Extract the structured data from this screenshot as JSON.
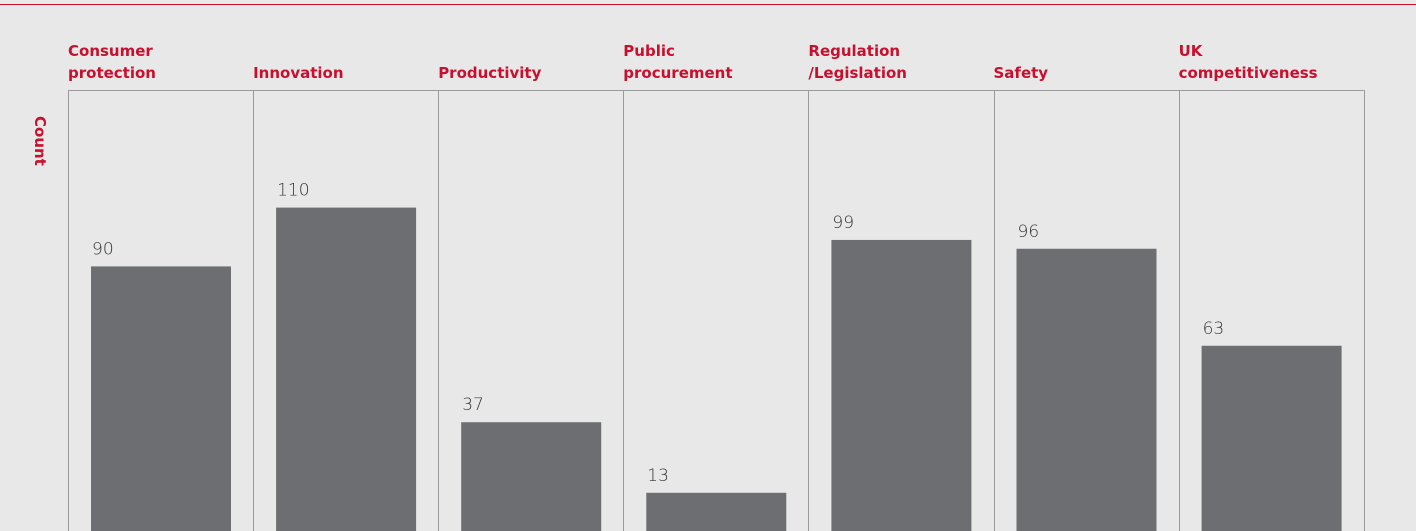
{
  "chart_data": {
    "type": "bar",
    "y_label": "Count",
    "categories": [
      "Consumer protection",
      "Innovation",
      "Productivity",
      "Public procurement",
      "Regulation /Legislation",
      "Safety",
      "UK competitiveness"
    ],
    "values": [
      90,
      110,
      37,
      13,
      99,
      96,
      63
    ],
    "color": "#6d6e71",
    "label_color": "#c8102e",
    "ylim": [
      0,
      150
    ]
  }
}
